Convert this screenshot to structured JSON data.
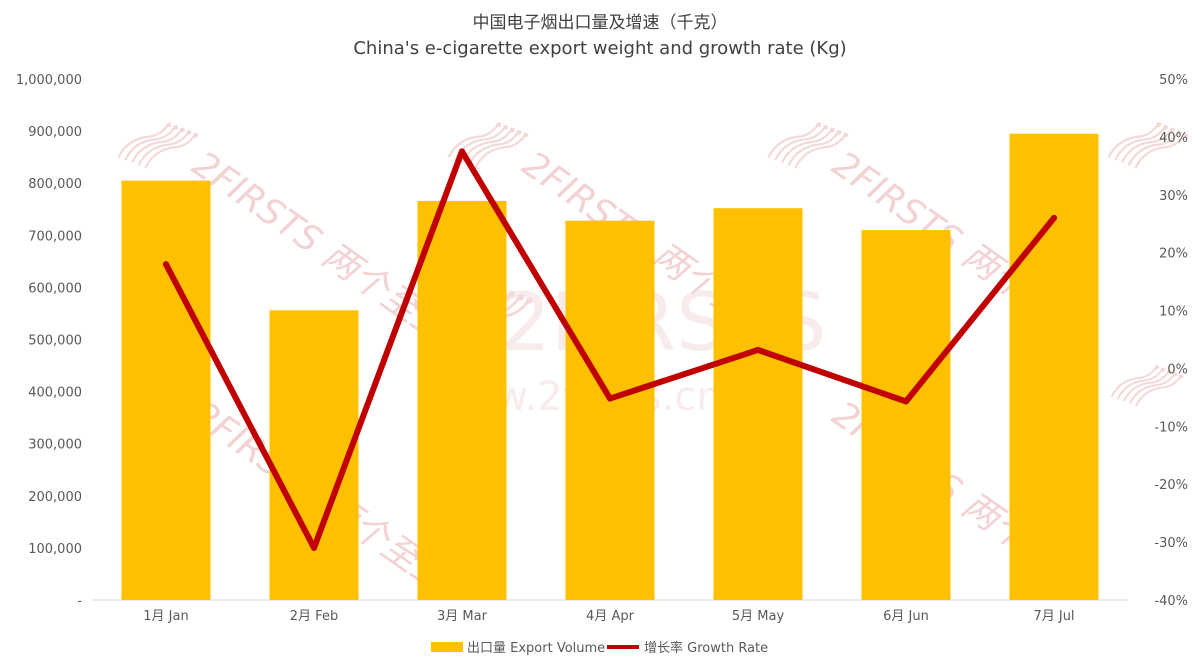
{
  "chart_data": {
    "type": "bar",
    "title": "中国电子烟出口量及增速（千克）",
    "subtitle": "China's e-cigarette export weight and growth rate (Kg)",
    "categories": [
      "1月 Jan",
      "2月 Feb",
      "3月 Mar",
      "4月 Apr",
      "5月 May",
      "6月 Jun",
      "7月 Jul"
    ],
    "series": [
      {
        "name": "出口量 Export Volume",
        "type": "bar",
        "axis": "left",
        "color": "#FFC000",
        "values": [
          805000,
          556000,
          766000,
          728000,
          752000,
          710000,
          895000
        ]
      },
      {
        "name": "增长率 Growth Rate",
        "type": "line",
        "axis": "right",
        "color": "#C00000",
        "values": [
          0.18,
          -0.31,
          0.375,
          -0.052,
          0.032,
          -0.057,
          0.26
        ]
      }
    ],
    "y_left": {
      "min": 0,
      "max": 1000000,
      "ticks": [
        "-",
        "100,000",
        "200,000",
        "300,000",
        "400,000",
        "500,000",
        "600,000",
        "700,000",
        "800,000",
        "900,000",
        "1,000,000"
      ]
    },
    "y_right": {
      "min": -0.4,
      "max": 0.5,
      "ticks": [
        "-40%",
        "-30%",
        "-20%",
        "-10%",
        "0%",
        "10%",
        "20%",
        "30%",
        "40%",
        "50%"
      ]
    },
    "grid": false,
    "legend": "bottom-center",
    "watermark": [
      "2FIRSTS 两个至上",
      "www.2firsts.cn"
    ]
  }
}
